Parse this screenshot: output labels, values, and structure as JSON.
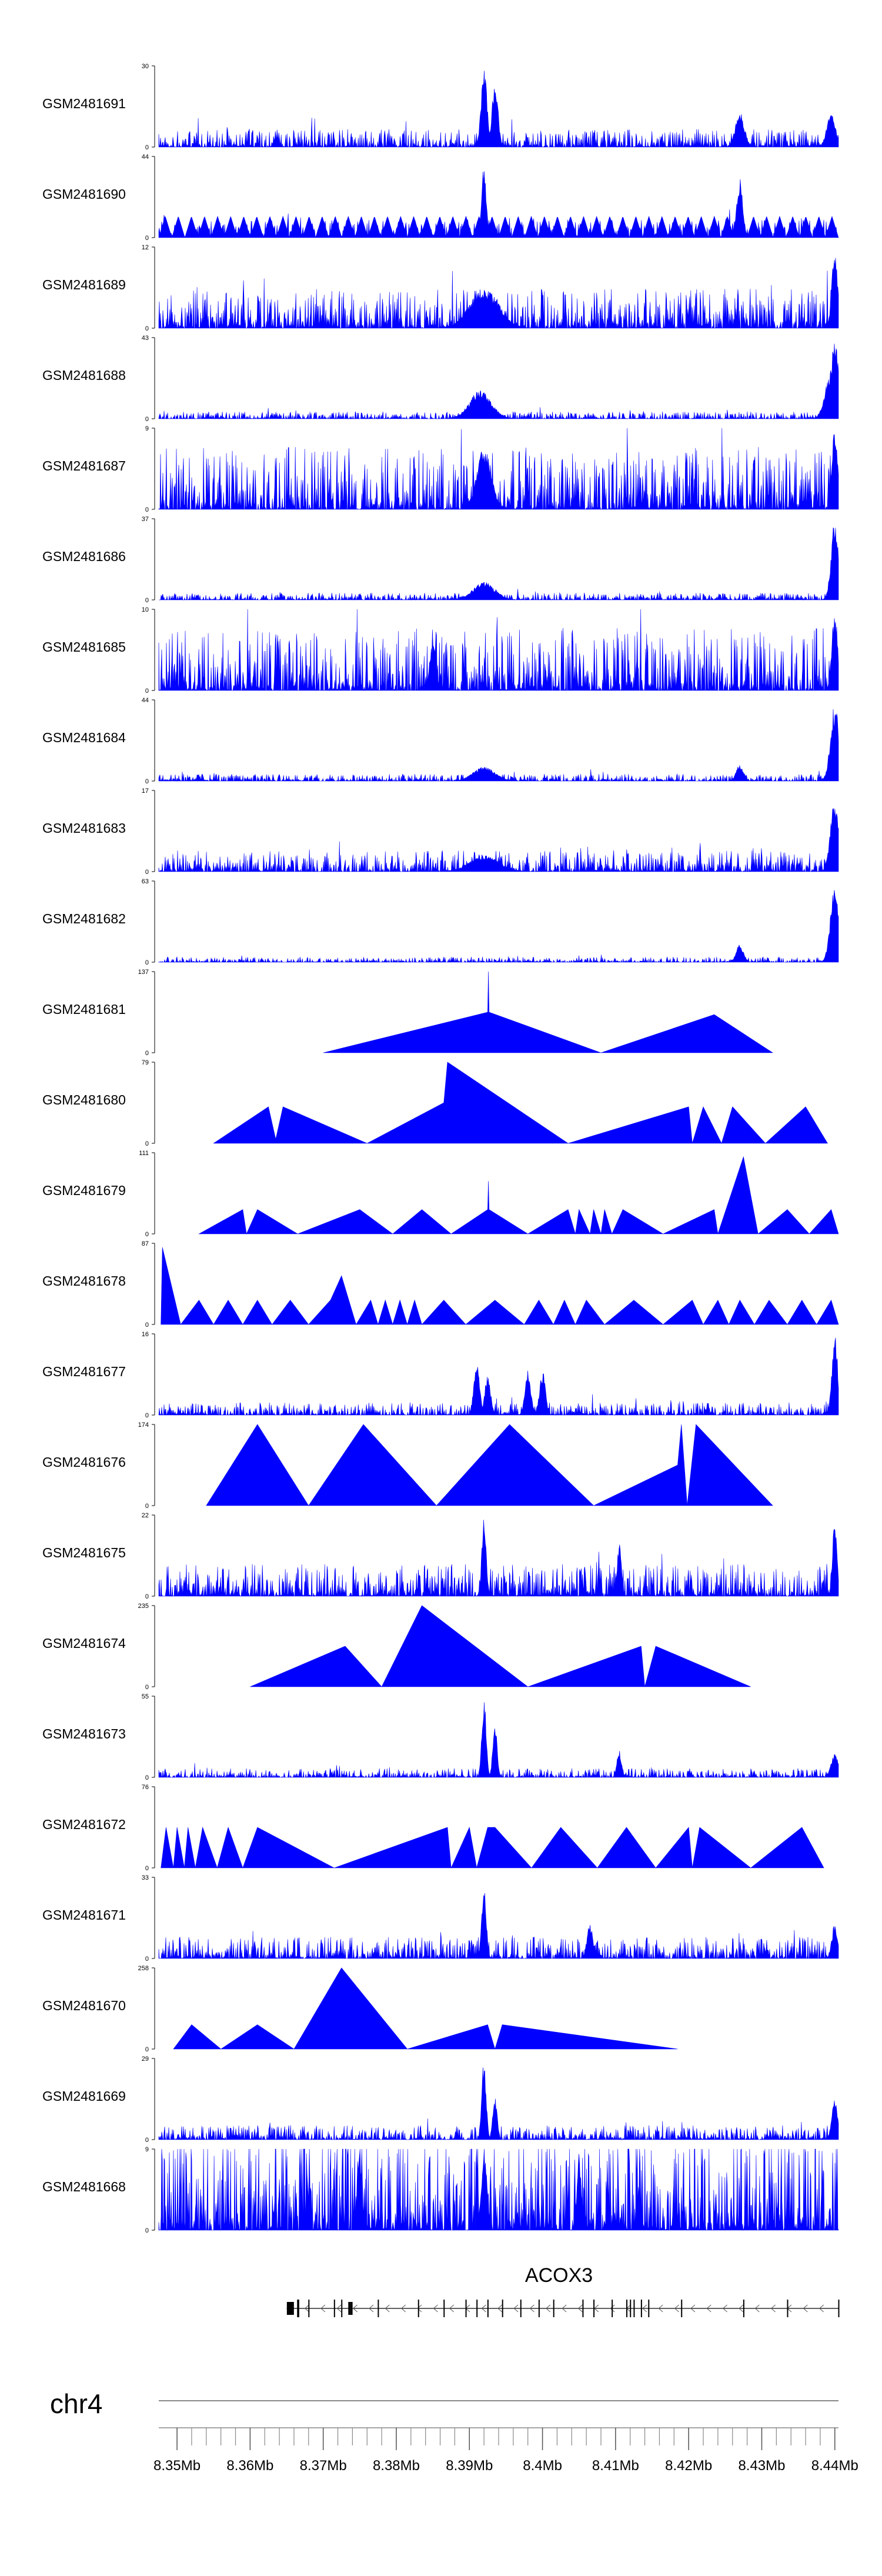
{
  "chart_data": {
    "type": "area",
    "title": "",
    "chromosome": "chr4",
    "x_range": [
      8.3475,
      8.4405
    ],
    "track_color": "#0000ff",
    "tracks": [
      {
        "name": "GSM2481691",
        "ymax": "30",
        "ymin": "0",
        "mode": "noise",
        "seed": 11,
        "base": 0.1,
        "peaks": [
          [
            8.392,
            1.0,
            0.0004
          ],
          [
            8.3935,
            0.85,
            0.0004
          ],
          [
            8.427,
            0.45,
            0.0006
          ],
          [
            8.4395,
            0.42,
            0.0006
          ]
        ]
      },
      {
        "name": "GSM2481690",
        "ymax": "44",
        "ymin": "0",
        "mode": "sawtooth",
        "seed": 12,
        "base": 0.25,
        "teeth": 52,
        "peaks": [
          [
            8.392,
            0.95,
            0.0003
          ],
          [
            8.427,
            0.75,
            0.0004
          ]
        ]
      },
      {
        "name": "GSM2481689",
        "ymax": "12",
        "ymin": "0",
        "mode": "noise",
        "seed": 13,
        "base": 0.22,
        "peaks": [
          [
            8.392,
            0.5,
            0.002
          ],
          [
            8.44,
            1.0,
            0.0004
          ]
        ]
      },
      {
        "name": "GSM2481688",
        "ymax": "43",
        "ymin": "0",
        "mode": "noise",
        "seed": 14,
        "base": 0.04,
        "peaks": [
          [
            8.3915,
            0.35,
            0.0015
          ],
          [
            8.44,
            1.0,
            0.0005
          ],
          [
            8.4395,
            0.6,
            0.0008
          ]
        ]
      },
      {
        "name": "GSM2481687",
        "ymax": "9",
        "ymin": "0",
        "mode": "noise",
        "seed": 15,
        "base": 0.35,
        "peaks": [
          [
            8.392,
            0.75,
            0.001
          ],
          [
            8.44,
            1.0,
            0.0004
          ]
        ]
      },
      {
        "name": "GSM2481686",
        "ymax": "37",
        "ymin": "0",
        "mode": "noise",
        "seed": 16,
        "base": 0.04,
        "peaks": [
          [
            8.392,
            0.22,
            0.0015
          ],
          [
            8.44,
            1.0,
            0.0005
          ]
        ]
      },
      {
        "name": "GSM2481685",
        "ymax": "10",
        "ymin": "0",
        "mode": "noise",
        "seed": 17,
        "base": 0.35,
        "peaks": [
          [
            8.385,
            0.6,
            0.0004
          ],
          [
            8.44,
            1.0,
            0.0004
          ]
        ]
      },
      {
        "name": "GSM2481684",
        "ymax": "44",
        "ymin": "0",
        "mode": "noise",
        "seed": 18,
        "base": 0.04,
        "peaks": [
          [
            8.392,
            0.18,
            0.0015
          ],
          [
            8.427,
            0.2,
            0.0005
          ],
          [
            8.44,
            0.95,
            0.0006
          ]
        ]
      },
      {
        "name": "GSM2481683",
        "ymax": "17",
        "ymin": "0",
        "mode": "noise",
        "seed": 19,
        "base": 0.12,
        "peaks": [
          [
            8.392,
            0.2,
            0.002
          ],
          [
            8.44,
            0.9,
            0.0006
          ]
        ]
      },
      {
        "name": "GSM2481682",
        "ymax": "63",
        "ymin": "0",
        "mode": "noise",
        "seed": 20,
        "base": 0.03,
        "peaks": [
          [
            8.427,
            0.22,
            0.0005
          ],
          [
            8.44,
            0.95,
            0.0006
          ]
        ]
      },
      {
        "name": "GSM2481681",
        "ymax": "137",
        "ymin": "0",
        "mode": "tri",
        "points": [
          [
            8.37,
            0
          ],
          [
            8.3925,
            0.5
          ],
          [
            8.3926,
            1.0
          ],
          [
            8.3927,
            0.5
          ],
          [
            8.408,
            0
          ],
          [
            8.4235,
            0.47
          ],
          [
            8.4315,
            0
          ]
        ]
      },
      {
        "name": "GSM2481680",
        "ymax": "79",
        "ymin": "0",
        "mode": "tri",
        "points": [
          [
            8.355,
            0
          ],
          [
            8.3625,
            0.45
          ],
          [
            8.3635,
            0.05
          ],
          [
            8.3645,
            0.45
          ],
          [
            8.376,
            0
          ],
          [
            8.3865,
            0.5
          ],
          [
            8.387,
            1.0
          ],
          [
            8.4035,
            0
          ],
          [
            8.42,
            0.45
          ],
          [
            8.4205,
            0
          ],
          [
            8.422,
            0.45
          ],
          [
            8.4245,
            0
          ],
          [
            8.426,
            0.45
          ],
          [
            8.4305,
            0
          ],
          [
            8.436,
            0.45
          ],
          [
            8.439,
            0
          ]
        ]
      },
      {
        "name": "GSM2481679",
        "ymax": "111",
        "ymin": "0",
        "mode": "tri",
        "points": [
          [
            8.353,
            0
          ],
          [
            8.359,
            0.3
          ],
          [
            8.3595,
            0
          ],
          [
            8.361,
            0.3
          ],
          [
            8.3665,
            0
          ],
          [
            8.375,
            0.3
          ],
          [
            8.3795,
            0
          ],
          [
            8.3835,
            0.3
          ],
          [
            8.3875,
            0
          ],
          [
            8.3925,
            0.3
          ],
          [
            8.3926,
            0.65
          ],
          [
            8.3927,
            0.3
          ],
          [
            8.398,
            0
          ],
          [
            8.4035,
            0.3
          ],
          [
            8.4045,
            0
          ],
          [
            8.405,
            0.3
          ],
          [
            8.4065,
            0
          ],
          [
            8.407,
            0.3
          ],
          [
            8.408,
            0
          ],
          [
            8.4085,
            0.3
          ],
          [
            8.4095,
            0
          ],
          [
            8.411,
            0.3
          ],
          [
            8.4165,
            0
          ],
          [
            8.4235,
            0.3
          ],
          [
            8.424,
            0
          ],
          [
            8.4275,
            0.95
          ],
          [
            8.4295,
            0
          ],
          [
            8.4335,
            0.3
          ],
          [
            8.4365,
            0
          ],
          [
            8.4395,
            0.3
          ],
          [
            8.4405,
            0
          ]
        ]
      },
      {
        "name": "GSM2481678",
        "ymax": "87",
        "ymin": "0",
        "mode": "tri",
        "points": [
          [
            8.3478,
            0
          ],
          [
            8.348,
            0.95
          ],
          [
            8.3505,
            0
          ],
          [
            8.353,
            0.3
          ],
          [
            8.355,
            0
          ],
          [
            8.357,
            0.3
          ],
          [
            8.359,
            0
          ],
          [
            8.361,
            0.3
          ],
          [
            8.363,
            0
          ],
          [
            8.3655,
            0.3
          ],
          [
            8.368,
            0
          ],
          [
            8.371,
            0.3
          ],
          [
            8.3725,
            0.6
          ],
          [
            8.3745,
            0
          ],
          [
            8.3765,
            0.3
          ],
          [
            8.3775,
            0
          ],
          [
            8.3785,
            0.3
          ],
          [
            8.3795,
            0
          ],
          [
            8.3805,
            0.3
          ],
          [
            8.3815,
            0
          ],
          [
            8.3825,
            0.3
          ],
          [
            8.3835,
            0
          ],
          [
            8.3865,
            0.3
          ],
          [
            8.3895,
            0
          ],
          [
            8.3935,
            0.3
          ],
          [
            8.3975,
            0
          ],
          [
            8.3995,
            0.3
          ],
          [
            8.4015,
            0
          ],
          [
            8.403,
            0.3
          ],
          [
            8.4045,
            0
          ],
          [
            8.406,
            0.3
          ],
          [
            8.4085,
            0
          ],
          [
            8.4125,
            0.3
          ],
          [
            8.4165,
            0
          ],
          [
            8.4205,
            0.3
          ],
          [
            8.422,
            0
          ],
          [
            8.424,
            0.3
          ],
          [
            8.4255,
            0
          ],
          [
            8.427,
            0.3
          ],
          [
            8.429,
            0
          ],
          [
            8.431,
            0.3
          ],
          [
            8.4335,
            0
          ],
          [
            8.4355,
            0.3
          ],
          [
            8.4375,
            0
          ],
          [
            8.4395,
            0.3
          ],
          [
            8.4405,
            0
          ]
        ]
      },
      {
        "name": "GSM2481677",
        "ymax": "16",
        "ymin": "0",
        "mode": "noise",
        "seed": 21,
        "base": 0.07,
        "peaks": [
          [
            8.391,
            0.65,
            0.0004
          ],
          [
            8.3925,
            0.5,
            0.0004
          ],
          [
            8.398,
            0.55,
            0.0004
          ],
          [
            8.4,
            0.55,
            0.0004
          ],
          [
            8.44,
            1.0,
            0.0004
          ]
        ]
      },
      {
        "name": "GSM2481676",
        "ymax": "174",
        "ymin": "0",
        "mode": "tri",
        "points": [
          [
            8.354,
            0
          ],
          [
            8.361,
            1.0
          ],
          [
            8.368,
            0
          ],
          [
            8.3755,
            1.0
          ],
          [
            8.3855,
            0
          ],
          [
            8.3955,
            1.0
          ],
          [
            8.407,
            0
          ],
          [
            8.4185,
            0.5
          ],
          [
            8.419,
            1.0
          ],
          [
            8.4198,
            0
          ],
          [
            8.421,
            1.0
          ],
          [
            8.4315,
            0
          ]
        ]
      },
      {
        "name": "GSM2481675",
        "ymax": "22",
        "ymin": "0",
        "mode": "noise",
        "seed": 22,
        "base": 0.18,
        "peaks": [
          [
            8.392,
            1.0,
            0.0003
          ],
          [
            8.4105,
            0.65,
            0.0003
          ],
          [
            8.44,
            1.0,
            0.0003
          ]
        ]
      },
      {
        "name": "GSM2481674",
        "ymax": "235",
        "ymin": "0",
        "mode": "tri",
        "points": [
          [
            8.36,
            0
          ],
          [
            8.373,
            0.5
          ],
          [
            8.378,
            0
          ],
          [
            8.3835,
            1.0
          ],
          [
            8.398,
            0
          ],
          [
            8.4135,
            0.5
          ],
          [
            8.414,
            0
          ],
          [
            8.4155,
            0.5
          ],
          [
            8.4285,
            0
          ]
        ]
      },
      {
        "name": "GSM2481673",
        "ymax": "55",
        "ymin": "0",
        "mode": "noise",
        "seed": 23,
        "base": 0.05,
        "peaks": [
          [
            8.392,
            1.0,
            0.0003
          ],
          [
            8.3935,
            0.65,
            0.0003
          ],
          [
            8.4105,
            0.35,
            0.0003
          ],
          [
            8.44,
            0.3,
            0.0005
          ]
        ]
      },
      {
        "name": "GSM2481672",
        "ymax": "76",
        "ymin": "0",
        "mode": "tri",
        "points": [
          [
            8.3478,
            0
          ],
          [
            8.3485,
            0.5
          ],
          [
            8.3495,
            0
          ],
          [
            8.35,
            0.5
          ],
          [
            8.351,
            0
          ],
          [
            8.3515,
            0.5
          ],
          [
            8.3525,
            0
          ],
          [
            8.3535,
            0.5
          ],
          [
            8.3555,
            0
          ],
          [
            8.357,
            0.5
          ],
          [
            8.359,
            0
          ],
          [
            8.361,
            0.5
          ],
          [
            8.3715,
            0
          ],
          [
            8.387,
            0.5
          ],
          [
            8.3875,
            0
          ],
          [
            8.39,
            0.5
          ],
          [
            8.391,
            0
          ],
          [
            8.3925,
            0.5
          ],
          [
            8.3935,
            0.5
          ],
          [
            8.3985,
            0
          ],
          [
            8.4025,
            0.5
          ],
          [
            8.4075,
            0
          ],
          [
            8.4115,
            0.5
          ],
          [
            8.4155,
            0
          ],
          [
            8.42,
            0.5
          ],
          [
            8.4205,
            0
          ],
          [
            8.4215,
            0.5
          ],
          [
            8.4285,
            0
          ],
          [
            8.4355,
            0.5
          ],
          [
            8.4385,
            0
          ]
        ]
      },
      {
        "name": "GSM2481671",
        "ymax": "33",
        "ymin": "0",
        "mode": "noise",
        "seed": 24,
        "base": 0.12,
        "peaks": [
          [
            8.392,
            1.0,
            0.0003
          ],
          [
            8.4065,
            0.45,
            0.0004
          ],
          [
            8.44,
            0.45,
            0.0004
          ]
        ]
      },
      {
        "name": "GSM2481670",
        "ymax": "258",
        "ymin": "0",
        "mode": "tri",
        "points": [
          [
            8.3495,
            0
          ],
          [
            8.352,
            0.3
          ],
          [
            8.356,
            0
          ],
          [
            8.361,
            0.3
          ],
          [
            8.366,
            0
          ],
          [
            8.3725,
            1.0
          ],
          [
            8.3815,
            0
          ],
          [
            8.3925,
            0.3
          ],
          [
            8.3935,
            0
          ],
          [
            8.3945,
            0.3
          ],
          [
            8.4185,
            0
          ]
        ]
      },
      {
        "name": "GSM2481669",
        "ymax": "29",
        "ymin": "0",
        "mode": "noise",
        "seed": 25,
        "base": 0.08,
        "peaks": [
          [
            8.392,
            1.0,
            0.0003
          ],
          [
            8.3935,
            0.55,
            0.0003
          ],
          [
            8.44,
            0.55,
            0.0004
          ]
        ]
      },
      {
        "name": "GSM2481668",
        "ymax": "9",
        "ymin": "0",
        "mode": "noise",
        "seed": 26,
        "base": 0.6,
        "peaks": [
          [
            8.375,
            1.0,
            0.0003
          ],
          [
            8.392,
            1.0,
            0.0004
          ],
          [
            8.405,
            0.95,
            0.0003
          ]
        ]
      }
    ],
    "gene": {
      "name": "ACOX3",
      "strand": "-",
      "start": 8.365,
      "end": 8.4405,
      "exons": [
        8.3655,
        8.3665,
        8.368,
        8.3715,
        8.3725,
        8.3735,
        8.3738,
        8.3775,
        8.383,
        8.3865,
        8.3895,
        8.391,
        8.3925,
        8.3945,
        8.397,
        8.3995,
        8.4015,
        8.4055,
        8.407,
        8.4095,
        8.4115,
        8.412,
        8.4125,
        8.4135,
        8.4145,
        8.419,
        8.4275,
        8.4335,
        8.4405
      ]
    },
    "axis": {
      "ticks": [
        8.35,
        8.36,
        8.37,
        8.38,
        8.39,
        8.4,
        8.41,
        8.42,
        8.43,
        8.44
      ],
      "tick_labels": [
        "8.35Mb",
        "8.36Mb",
        "8.37Mb",
        "8.38Mb",
        "8.39Mb",
        "8.4Mb",
        "8.41Mb",
        "8.42Mb",
        "8.43Mb",
        "8.44Mb"
      ],
      "minor_step": 0.002
    }
  }
}
